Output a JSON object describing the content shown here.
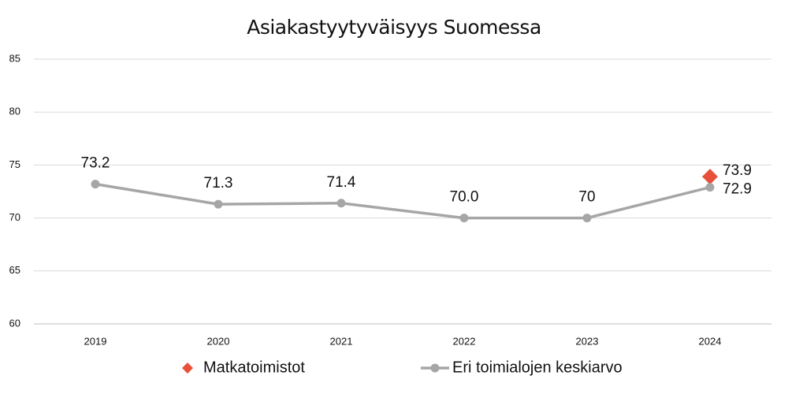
{
  "chart_data": {
    "type": "line",
    "title": "Asiakastyytyväisyys Suomessa",
    "categories": [
      "2019",
      "2020",
      "2021",
      "2022",
      "2023",
      "2024"
    ],
    "series": [
      {
        "name": "Matkatoimistot",
        "color": "#e8503a",
        "marker": "diamond",
        "values": [
          null,
          null,
          null,
          null,
          null,
          73.9
        ]
      },
      {
        "name": "Eri toimialojen keskiarvo",
        "color": "#a6a6a6",
        "marker": "circle",
        "values": [
          73.2,
          71.3,
          71.4,
          70.0,
          70,
          72.9
        ],
        "value_labels": [
          "73.2",
          "71.3",
          "71.4",
          "70.0",
          "70",
          "72.9"
        ]
      }
    ],
    "ylim": [
      60,
      85
    ],
    "yticks": [
      60,
      65,
      70,
      75,
      80,
      85
    ],
    "grid": true,
    "legend": "bottom"
  }
}
